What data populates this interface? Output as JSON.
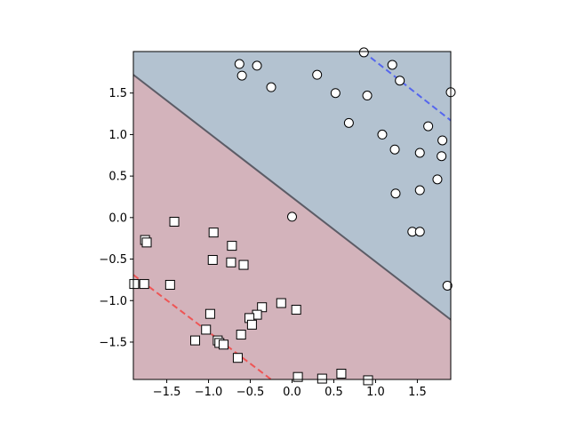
{
  "chart_data": {
    "type": "scatter",
    "title": "",
    "xlabel": "",
    "ylabel": "",
    "xlim": [
      -1.9,
      1.9
    ],
    "ylim": [
      -1.95,
      2.0
    ],
    "grid": false,
    "legend": "none",
    "x_ticks": [
      -1.5,
      -1.0,
      -0.5,
      0.0,
      0.5,
      1.0,
      1.5
    ],
    "x_tick_labels": [
      "−1.5",
      "−1.0",
      "−0.5",
      "0.0",
      "0.5",
      "1.0",
      "1.5"
    ],
    "y_ticks": [
      -1.5,
      -1.0,
      -0.5,
      0.0,
      0.5,
      1.0,
      1.5
    ],
    "y_tick_labels": [
      "−1.5",
      "−1.0",
      "−0.5",
      "0.0",
      "0.5",
      "1.0",
      "1.5"
    ],
    "regions": [
      {
        "class": "circle",
        "color": "#b3c2d0"
      },
      {
        "class": "square",
        "color": "#d3b3bb"
      }
    ],
    "decision_boundary": {
      "points": [
        [
          -1.9,
          1.72
        ],
        [
          1.9,
          -1.23
        ]
      ],
      "color": "#5c5c66",
      "style": "solid"
    },
    "margins": [
      {
        "points": [
          [
            0.85,
            2.0
          ],
          [
            1.9,
            1.17
          ]
        ],
        "color": "#5566ee",
        "style": "dashed"
      },
      {
        "points": [
          [
            -1.9,
            -0.69
          ],
          [
            -0.25,
            -1.95
          ]
        ],
        "color": "#ee5555",
        "style": "dashed"
      }
    ],
    "series": [
      {
        "marker": "circle",
        "points": [
          [
            -0.63,
            1.85
          ],
          [
            -0.42,
            1.83
          ],
          [
            -0.6,
            1.71
          ],
          [
            -0.25,
            1.57
          ],
          [
            0.3,
            1.72
          ],
          [
            0.52,
            1.5
          ],
          [
            0.9,
            1.47
          ],
          [
            0.86,
            1.99
          ],
          [
            1.2,
            1.84
          ],
          [
            1.29,
            1.65
          ],
          [
            1.9,
            1.51
          ],
          [
            0.68,
            1.14
          ],
          [
            1.08,
            1.0
          ],
          [
            1.63,
            1.1
          ],
          [
            1.8,
            0.93
          ],
          [
            1.23,
            0.82
          ],
          [
            1.53,
            0.78
          ],
          [
            1.79,
            0.74
          ],
          [
            1.74,
            0.46
          ],
          [
            1.24,
            0.29
          ],
          [
            1.53,
            0.33
          ],
          [
            0.0,
            0.01
          ],
          [
            1.44,
            -0.17
          ],
          [
            1.53,
            -0.17
          ],
          [
            1.86,
            -0.82
          ]
        ]
      },
      {
        "marker": "square",
        "points": [
          [
            -1.76,
            -0.27
          ],
          [
            -1.74,
            -0.3
          ],
          [
            -1.41,
            -0.05
          ],
          [
            -0.94,
            -0.18
          ],
          [
            -0.72,
            -0.34
          ],
          [
            -0.95,
            -0.51
          ],
          [
            -0.73,
            -0.54
          ],
          [
            -0.58,
            -0.57
          ],
          [
            -1.89,
            -0.8
          ],
          [
            -1.77,
            -0.8
          ],
          [
            -1.46,
            -0.81
          ],
          [
            -0.36,
            -1.08
          ],
          [
            -0.13,
            -1.03
          ],
          [
            0.05,
            -1.11
          ],
          [
            -0.98,
            -1.16
          ],
          [
            -0.42,
            -1.17
          ],
          [
            -0.51,
            -1.21
          ],
          [
            -0.48,
            -1.29
          ],
          [
            -1.03,
            -1.35
          ],
          [
            -0.61,
            -1.41
          ],
          [
            -1.16,
            -1.48
          ],
          [
            -0.89,
            -1.48
          ],
          [
            -0.87,
            -1.51
          ],
          [
            -0.82,
            -1.53
          ],
          [
            -0.65,
            -1.69
          ],
          [
            0.07,
            -1.92
          ],
          [
            0.36,
            -1.94
          ],
          [
            0.59,
            -1.88
          ],
          [
            0.91,
            -1.96
          ]
        ]
      }
    ]
  }
}
